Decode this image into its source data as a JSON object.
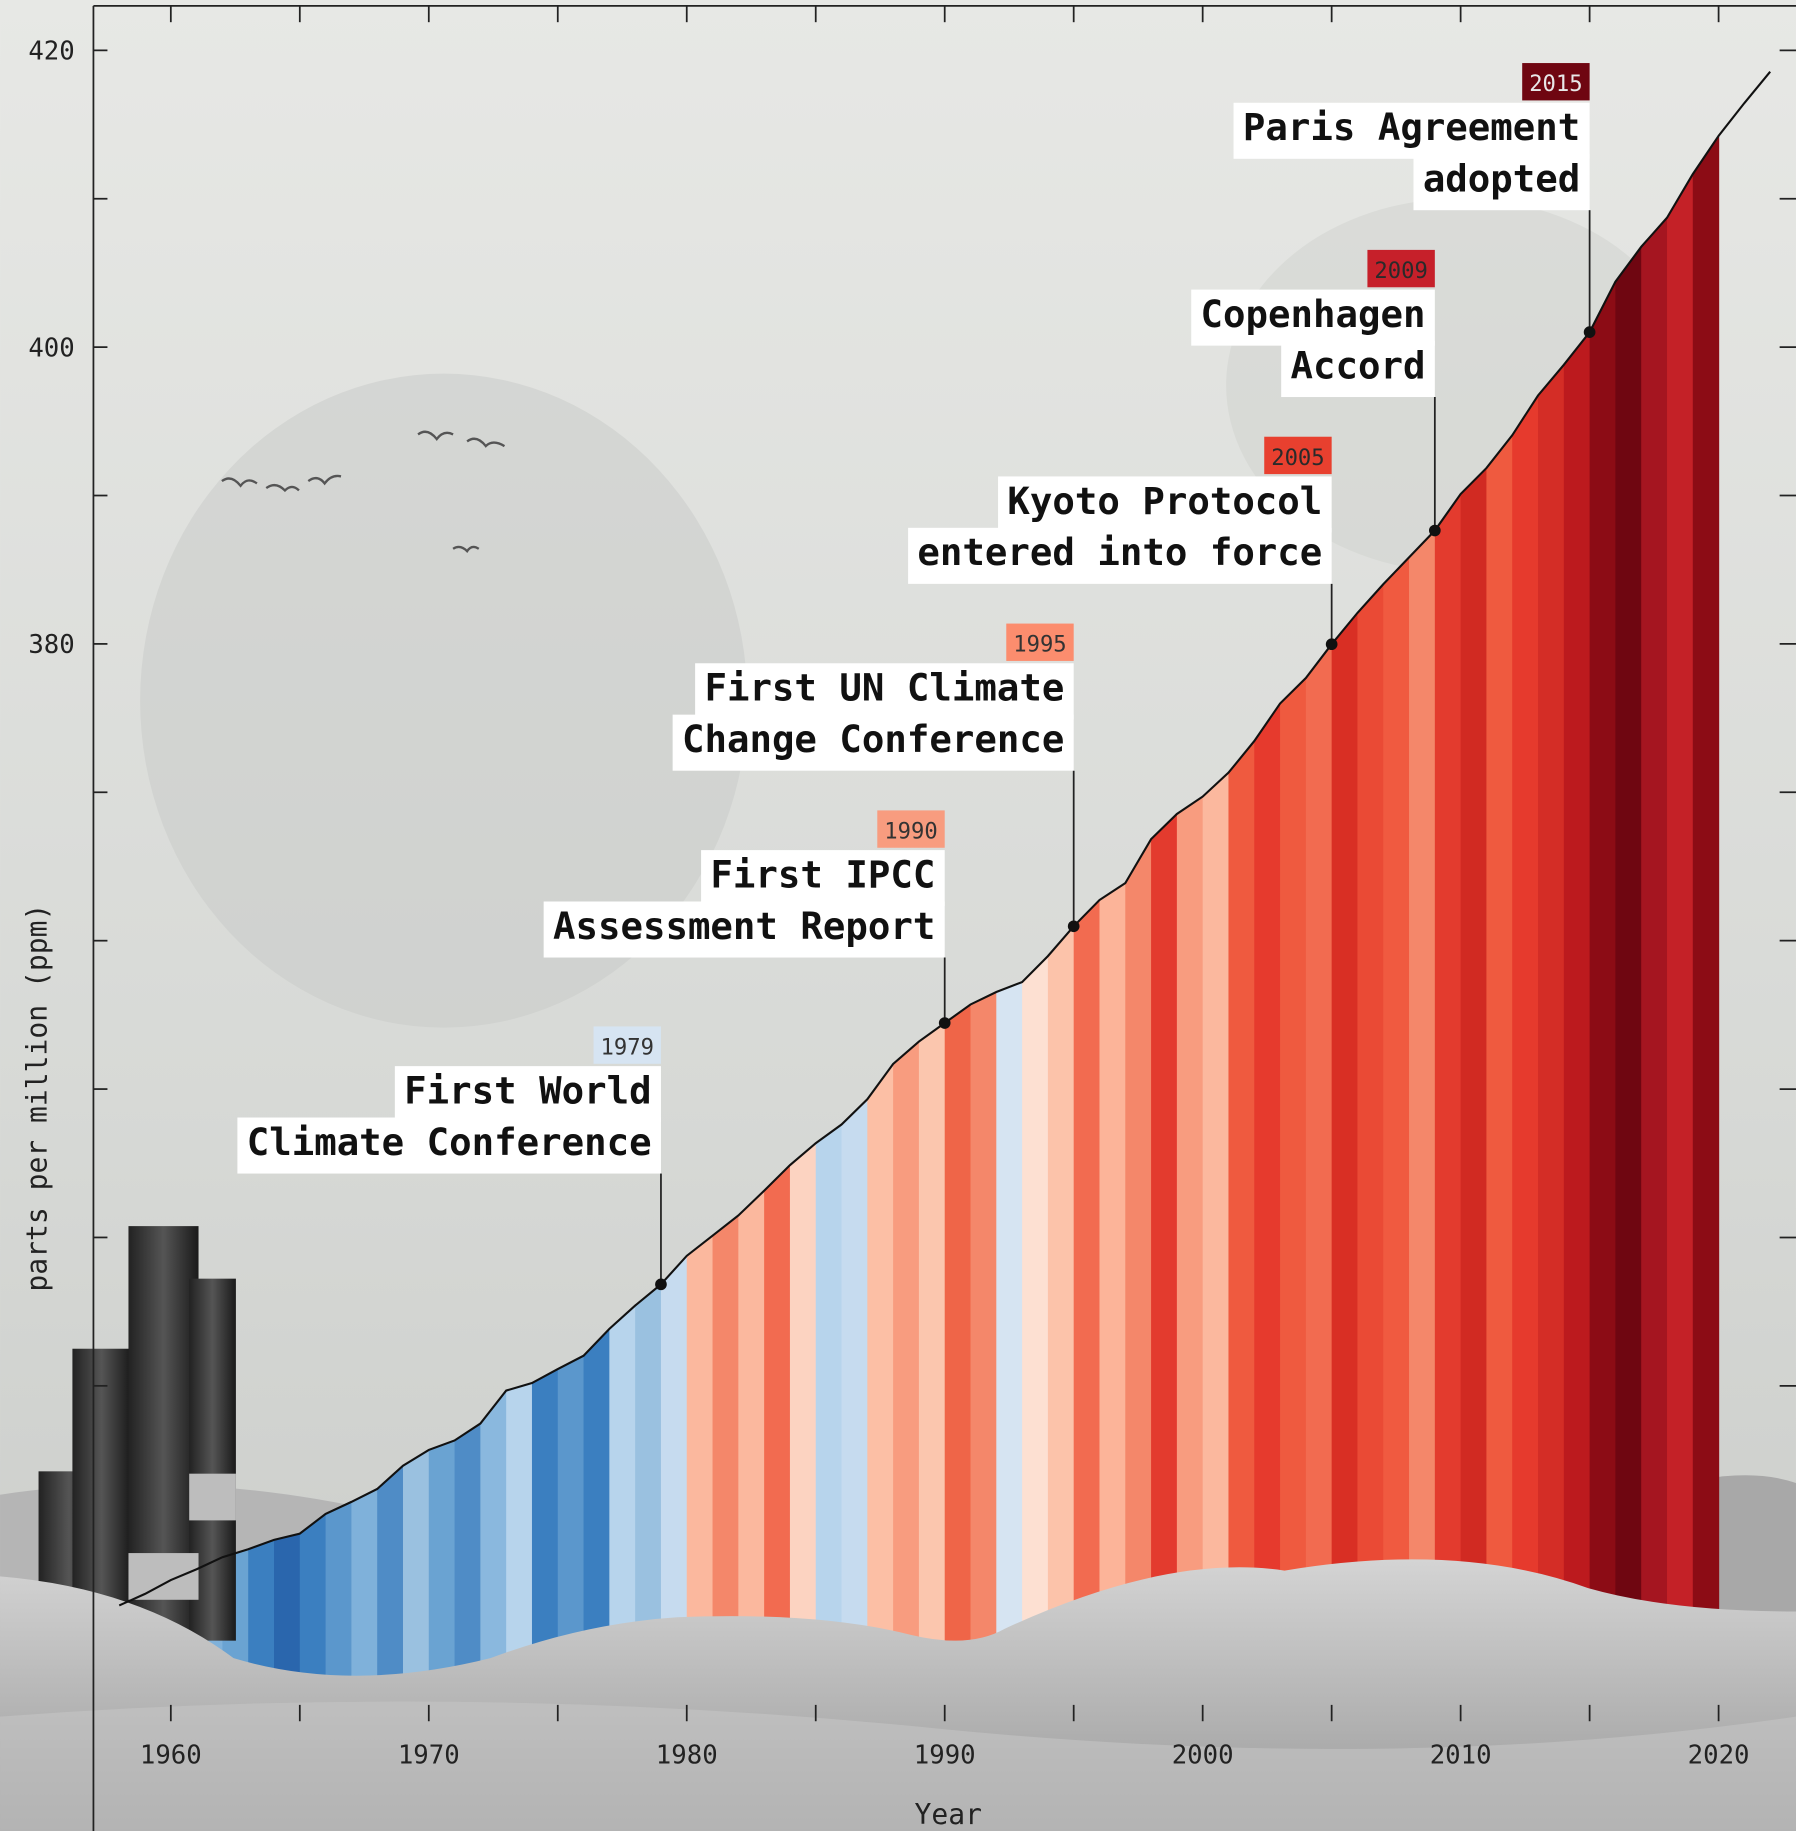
{
  "chart_data": {
    "type": "line",
    "xlabel": "Year",
    "ylabel": "parts per million (ppm)",
    "x": [
      1958,
      1959,
      1960,
      1961,
      1962,
      1963,
      1964,
      1965,
      1966,
      1967,
      1968,
      1969,
      1970,
      1971,
      1972,
      1973,
      1974,
      1975,
      1976,
      1977,
      1978,
      1979,
      1980,
      1981,
      1982,
      1983,
      1984,
      1985,
      1986,
      1987,
      1988,
      1989,
      1990,
      1991,
      1992,
      1993,
      1994,
      1995,
      1996,
      1997,
      1998,
      1999,
      2000,
      2001,
      2002,
      2003,
      2004,
      2005,
      2006,
      2007,
      2008,
      2009,
      2010,
      2011,
      2012,
      2013,
      2014,
      2015,
      2016,
      2017,
      2018,
      2019,
      2020,
      2021,
      2022
    ],
    "values": [
      315.2,
      315.98,
      316.91,
      317.64,
      318.45,
      318.99,
      319.62,
      320.04,
      321.37,
      322.18,
      323.05,
      324.62,
      325.68,
      326.32,
      327.46,
      329.68,
      330.19,
      331.13,
      332.03,
      333.84,
      335.41,
      336.84,
      338.76,
      340.12,
      341.48,
      343.15,
      344.87,
      346.35,
      347.61,
      349.31,
      351.69,
      353.2,
      354.45,
      355.7,
      356.54,
      357.21,
      358.96,
      360.97,
      362.74,
      363.88,
      366.84,
      368.54,
      369.71,
      371.32,
      373.45,
      375.98,
      377.7,
      379.98,
      382.09,
      384.02,
      385.83,
      387.64,
      390.1,
      391.85,
      394.06,
      396.74,
      398.81,
      401.01,
      404.41,
      406.76,
      408.72,
      411.66,
      414.24,
      416.45,
      418.56
    ],
    "color": "#111111",
    "xlim": [
      1957,
      2023
    ],
    "ylim": [
      300,
      423
    ],
    "xticks": [
      1960,
      1970,
      1980,
      1990,
      2000,
      2010,
      2020
    ],
    "xticks_minor": [
      1965,
      1975,
      1985,
      1995,
      2005,
      2015
    ],
    "yticks": [
      380,
      400,
      420
    ],
    "yticks_minor": [
      330,
      340,
      350,
      360,
      370,
      390,
      410
    ],
    "stripes": [
      {
        "year": 1960,
        "color": "#a6c8e6"
      },
      {
        "year": 1961,
        "color": "#7fb1da"
      },
      {
        "year": 1962,
        "color": "#6aa3d2"
      },
      {
        "year": 1963,
        "color": "#3b7fc0"
      },
      {
        "year": 1964,
        "color": "#2a66ad"
      },
      {
        "year": 1965,
        "color": "#3b7fc0"
      },
      {
        "year": 1966,
        "color": "#5b97cc"
      },
      {
        "year": 1967,
        "color": "#7fb1da"
      },
      {
        "year": 1968,
        "color": "#4f8cc6"
      },
      {
        "year": 1969,
        "color": "#9ac1e0"
      },
      {
        "year": 1970,
        "color": "#6aa3d2"
      },
      {
        "year": 1971,
        "color": "#4f8cc6"
      },
      {
        "year": 1972,
        "color": "#8ab8de"
      },
      {
        "year": 1973,
        "color": "#b7d4ec"
      },
      {
        "year": 1974,
        "color": "#3b7fc0"
      },
      {
        "year": 1975,
        "color": "#5b97cc"
      },
      {
        "year": 1976,
        "color": "#3b7fc0"
      },
      {
        "year": 1977,
        "color": "#b7d4ec"
      },
      {
        "year": 1978,
        "color": "#9ac1e0"
      },
      {
        "year": 1979,
        "color": "#c6dbef"
      },
      {
        "year": 1980,
        "color": "#fbb89e"
      },
      {
        "year": 1981,
        "color": "#f4876a"
      },
      {
        "year": 1982,
        "color": "#fbb89e"
      },
      {
        "year": 1983,
        "color": "#f26b50"
      },
      {
        "year": 1984,
        "color": "#fcd3c1"
      },
      {
        "year": 1985,
        "color": "#b7d4ec"
      },
      {
        "year": 1986,
        "color": "#c6dbef"
      },
      {
        "year": 1987,
        "color": "#fcbfa5"
      },
      {
        "year": 1988,
        "color": "#f89c7f"
      },
      {
        "year": 1989,
        "color": "#fbc6ae"
      },
      {
        "year": 1990,
        "color": "#ef6548"
      },
      {
        "year": 1991,
        "color": "#f4876a"
      },
      {
        "year": 1992,
        "color": "#d6e4f2"
      },
      {
        "year": 1993,
        "color": "#fde0d2"
      },
      {
        "year": 1994,
        "color": "#fcc3aa"
      },
      {
        "year": 1995,
        "color": "#f26b50"
      },
      {
        "year": 1996,
        "color": "#fcb499"
      },
      {
        "year": 1997,
        "color": "#f4876a"
      },
      {
        "year": 1998,
        "color": "#e33b2e"
      },
      {
        "year": 1999,
        "color": "#f89c7f"
      },
      {
        "year": 2000,
        "color": "#fbb89e"
      },
      {
        "year": 2001,
        "color": "#ef5a3f"
      },
      {
        "year": 2002,
        "color": "#e63a2d"
      },
      {
        "year": 2003,
        "color": "#ef5a3f"
      },
      {
        "year": 2004,
        "color": "#f26b50"
      },
      {
        "year": 2005,
        "color": "#d92f24"
      },
      {
        "year": 2006,
        "color": "#ea4a35"
      },
      {
        "year": 2007,
        "color": "#f05a40"
      },
      {
        "year": 2008,
        "color": "#f4876a"
      },
      {
        "year": 2009,
        "color": "#e33b2e"
      },
      {
        "year": 2010,
        "color": "#d12a22"
      },
      {
        "year": 2011,
        "color": "#ef5a3f"
      },
      {
        "year": 2012,
        "color": "#e63a2d"
      },
      {
        "year": 2013,
        "color": "#d42d26"
      },
      {
        "year": 2014,
        "color": "#bc1a1e"
      },
      {
        "year": 2015,
        "color": "#8c0c15"
      },
      {
        "year": 2016,
        "color": "#6f0611"
      },
      {
        "year": 2017,
        "color": "#a51520"
      },
      {
        "year": 2018,
        "color": "#c42127"
      },
      {
        "year": 2019,
        "color": "#8c0c15"
      }
    ],
    "annotations": [
      {
        "year": 1979,
        "text": [
          "First World",
          "Climate Conference"
        ],
        "color": "#d6e4f2",
        "badge_text_color": "#333333"
      },
      {
        "year": 1990,
        "text": [
          "First IPCC",
          "Assessment Report"
        ],
        "color": "#f89c7f",
        "badge_text_color": "#333333"
      },
      {
        "year": 1995,
        "text": [
          "First UN Climate",
          "Change Conference"
        ],
        "color": "#fc8d6e",
        "badge_text_color": "#333333"
      },
      {
        "year": 2005,
        "text": [
          "Kyoto Protocol",
          "entered into force"
        ],
        "color": "#e8402f",
        "badge_text_color": "#2a2a2a"
      },
      {
        "year": 2009,
        "text": [
          "Copenhagen",
          "Accord"
        ],
        "color": "#c6202a",
        "badge_text_color": "#2a2a2a"
      },
      {
        "year": 2015,
        "text": [
          "Paris Agreement",
          "adopted"
        ],
        "color": "#6f0611",
        "badge_text_color": "#e8e8e8"
      }
    ]
  }
}
